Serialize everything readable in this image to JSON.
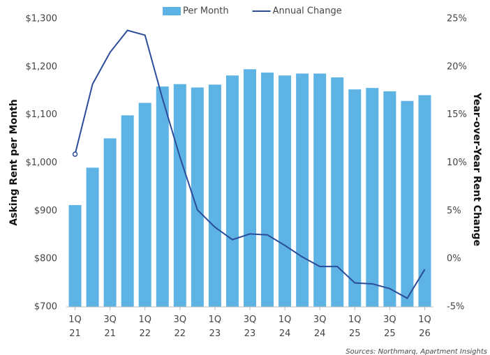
{
  "chart_data": {
    "type": "bar_line",
    "categories": [
      "1Q 21",
      null,
      "3Q 21",
      null,
      "1Q 22",
      null,
      "3Q 22",
      null,
      "1Q 23",
      null,
      "3Q 23",
      null,
      "1Q 24",
      null,
      "3Q 24",
      null,
      "1Q 25",
      null,
      "3Q 25",
      null,
      "1Q 26"
    ],
    "series": [
      {
        "name": "Per Month",
        "color": "#5db3e4",
        "values": [
          912,
          990,
          1051,
          1099,
          1125,
          1159,
          1164,
          1157,
          1163,
          1182,
          1195,
          1188,
          1182,
          1186,
          1186,
          1178,
          1153,
          1156,
          1149,
          1129,
          1141
        ]
      },
      {
        "name": "Annual Change",
        "color": "#2b4c9b",
        "axis": "y2",
        "values": [
          10.9,
          18.2,
          21.5,
          23.8,
          23.3,
          16.7,
          10.6,
          5.1,
          3.3,
          2.0,
          2.6,
          2.5,
          1.4,
          0.2,
          -0.8,
          -0.8,
          -2.5,
          -2.6,
          -3.1,
          -4.1,
          -1.1
        ]
      }
    ],
    "y_label": "Asking Rent per Month",
    "y2_label": "Year-over-Year Rent Change",
    "ylim": [
      700,
      1300
    ],
    "yticks": [
      {
        "value": 700,
        "label": "$700"
      },
      {
        "value": 800,
        "label": "$800"
      },
      {
        "value": 900,
        "label": "$900"
      },
      {
        "value": 1000,
        "label": "$1,000"
      },
      {
        "value": 1100,
        "label": "$1,100"
      },
      {
        "value": 1200,
        "label": "$1,200"
      },
      {
        "value": 1300,
        "label": "$1,300"
      }
    ],
    "y2lim": [
      -5,
      25
    ],
    "y2ticks": [
      {
        "value": -5,
        "label": "-5%"
      },
      {
        "value": 0,
        "label": "0%"
      },
      {
        "value": 5,
        "label": "5%"
      },
      {
        "value": 10,
        "label": "10%"
      },
      {
        "value": 15,
        "label": "15%"
      },
      {
        "value": 20,
        "label": "20%"
      },
      {
        "value": 25,
        "label": "25%"
      }
    ],
    "source": "Sources: Northmarq, Apartment Insights",
    "legend": "top"
  }
}
